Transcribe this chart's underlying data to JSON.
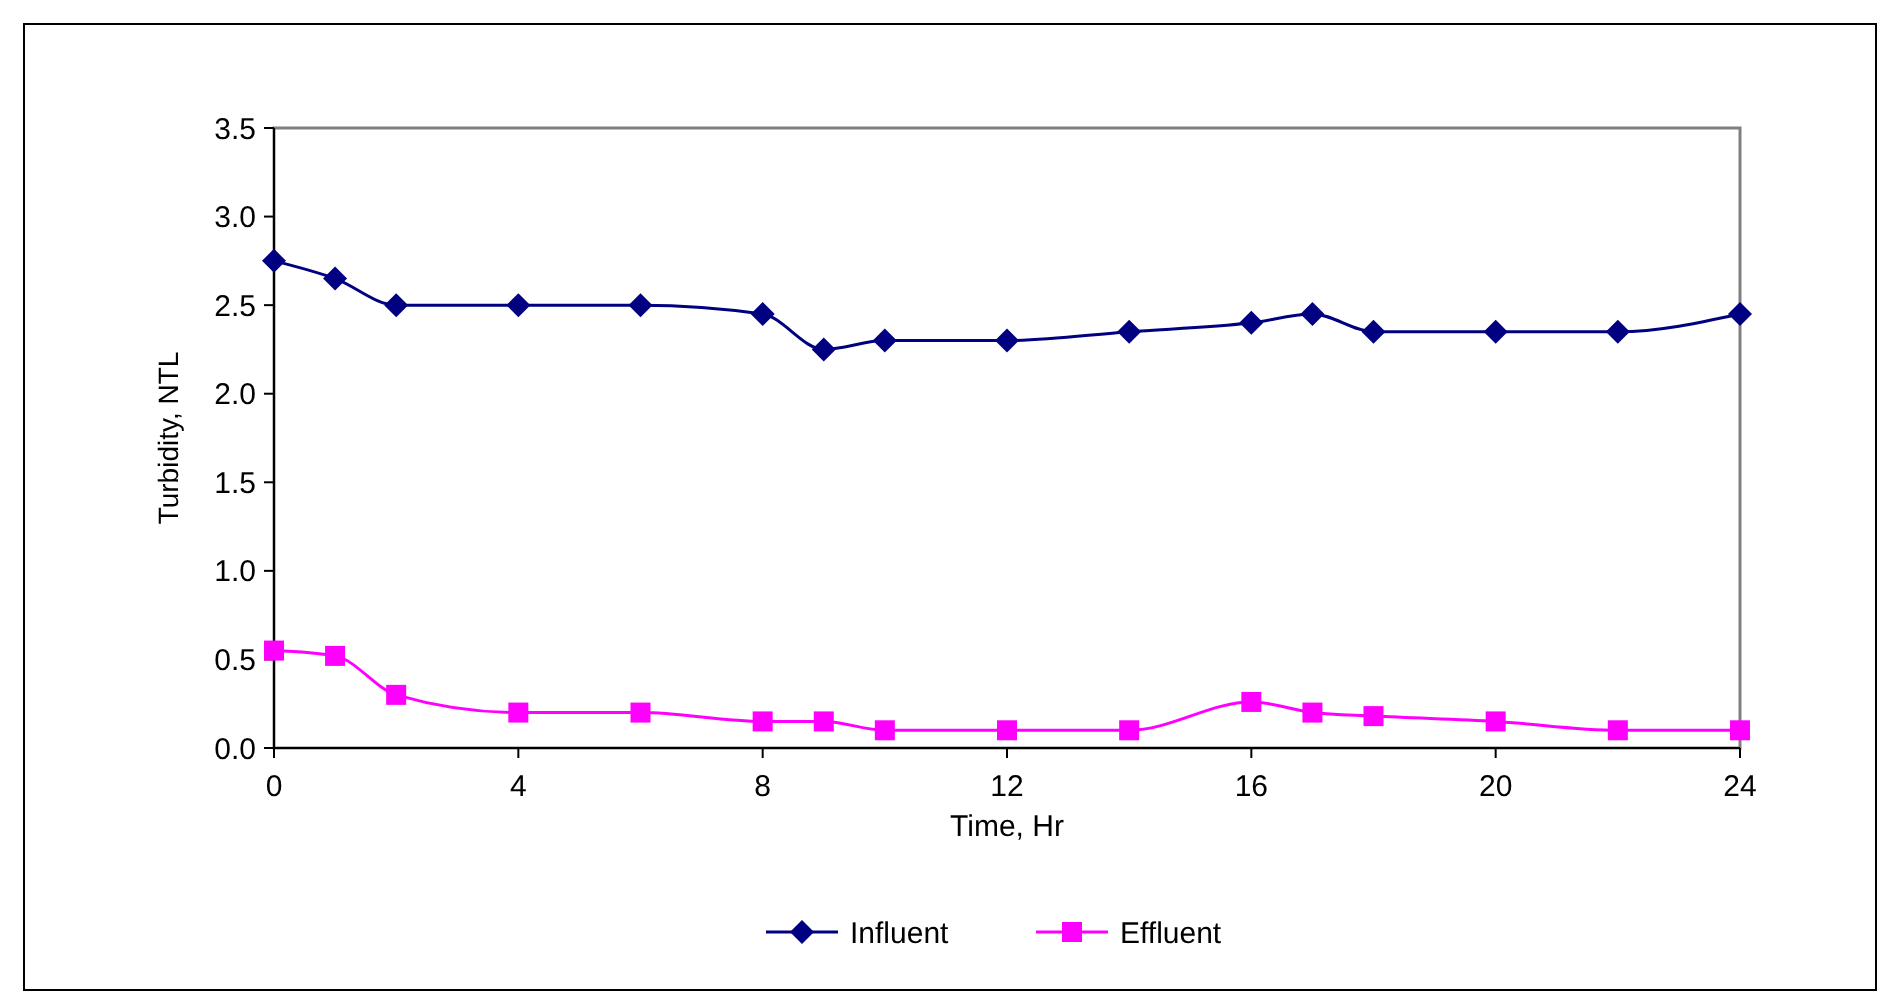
{
  "chart_data": {
    "type": "line",
    "xlabel": "Time, Hr",
    "ylabel": "Turbidity, NTL",
    "x": [
      0,
      1,
      2,
      4,
      6,
      8,
      9,
      10,
      12,
      14,
      16,
      17,
      18,
      20,
      22,
      24
    ],
    "series": [
      {
        "name": "Influent",
        "color": "#000080",
        "marker": "diamond",
        "values": [
          2.75,
          2.65,
          2.5,
          2.5,
          2.5,
          2.45,
          2.25,
          2.3,
          2.3,
          2.35,
          2.4,
          2.45,
          2.35,
          2.35,
          2.35,
          2.45
        ]
      },
      {
        "name": "Effluent",
        "color": "#ff00ff",
        "marker": "square",
        "values": [
          0.55,
          0.52,
          0.3,
          0.2,
          0.2,
          0.15,
          0.15,
          0.1,
          0.1,
          0.1,
          0.26,
          0.2,
          0.18,
          0.15,
          0.1,
          0.1
        ]
      }
    ],
    "xlim": [
      0,
      24
    ],
    "xticks": [
      0,
      4,
      8,
      12,
      16,
      20,
      24
    ],
    "ylim": [
      0,
      3.5
    ],
    "yticks": [
      {
        "value": 0,
        "label": "0.0"
      },
      {
        "value": 0.5,
        "label": "0.5"
      },
      {
        "value": 1,
        "label": "1.0"
      },
      {
        "value": 1.5,
        "label": "1.5"
      },
      {
        "value": 2,
        "label": "2.0"
      },
      {
        "value": 2.5,
        "label": "2.5"
      },
      {
        "value": 3,
        "label": "3.0"
      },
      {
        "value": 3.5,
        "label": "3.5"
      }
    ],
    "grid": false,
    "legend": "bottom"
  }
}
